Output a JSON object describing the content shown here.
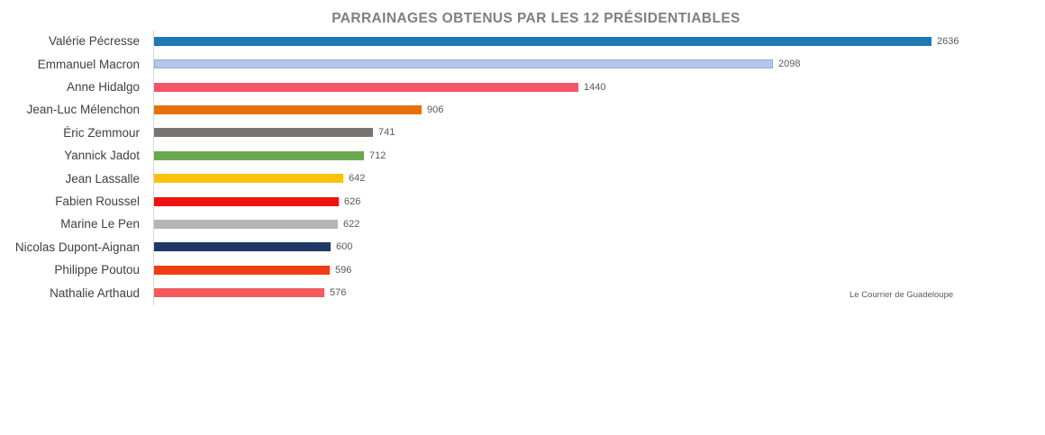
{
  "chart_data": {
    "type": "bar",
    "orientation": "horizontal",
    "title": "PARRAINAGES OBTENUS PAR LES 12 PRÉSIDENTIABLES",
    "source_note": "Le Courrier de Guadeloupe",
    "value_labels_shown": true,
    "xlim": [
      0,
      2700
    ],
    "legend": "none",
    "grid": "off",
    "categories": [
      "Valérie Pécresse",
      "Emmanuel Macron",
      "Anne Hidalgo",
      "Jean-Luc Mélenchon",
      "Éric Zemmour",
      "Yannick Jadot",
      "Jean Lassalle",
      "Fabien Roussel",
      "Marine Le Pen",
      "Nicolas Dupont-Aignan",
      "Philippe Poutou",
      "Nathalie Arthaud"
    ],
    "values": [
      2636,
      2098,
      1440,
      906,
      741,
      712,
      642,
      626,
      622,
      600,
      596,
      576
    ],
    "bar_colors": [
      "#1f77b4",
      "#b4c7e7",
      "#f4546a",
      "#e8710f",
      "#777471",
      "#69a84f",
      "#fcc10e",
      "#ee1111",
      "#b5b5b5",
      "#1f3864",
      "#ee3d14",
      "#f55b5e"
    ],
    "bar_border_colors": [
      null,
      "#8faadc",
      null,
      null,
      null,
      null,
      null,
      null,
      null,
      null,
      null,
      null
    ],
    "title_color": "#7f7f7f",
    "label_color": "#3f3f3f",
    "value_color": "#595959",
    "axis_line_color": "#d9d9d9"
  }
}
